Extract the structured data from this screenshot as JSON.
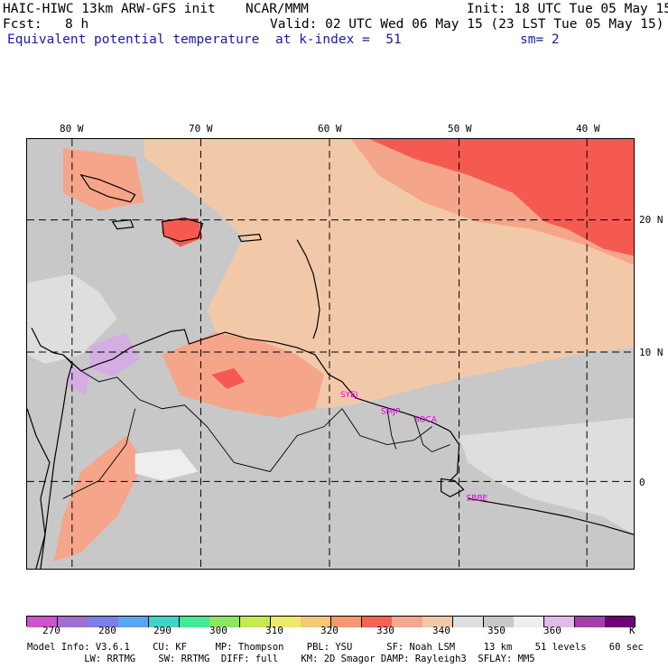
{
  "header": {
    "model_title": "HAIC-HIWC 13km ARW-GFS init",
    "org": "NCAR/MMM",
    "init": "Init: 18 UTC Tue 05 May 15",
    "forecast_label": "Fcst:",
    "forecast_hours": "8 h",
    "valid": "Valid: 02 UTC Wed 06 May 15 (23 LST Tue 05 May 15)",
    "field_name": "Equivalent potential temperature",
    "level": "at k-index =  51",
    "smoothing": "sm= 2"
  },
  "map": {
    "lon_labels": [
      "80 W",
      "70 W",
      "60 W",
      "50 W",
      "40 W"
    ],
    "lat_labels": [
      "20 N",
      "10 N",
      "0"
    ],
    "stations": [
      "SYEJ",
      "SMJP",
      "SOCA",
      "SBBE"
    ],
    "colors": {
      "background_gray": "#c8c8c8",
      "light_gray": "#dedede",
      "peach": "#f2c9a8",
      "salmon": "#f5a58a",
      "red": "#f55a50",
      "lavender": "#d4aee2",
      "station_magenta": "#e000e0"
    }
  },
  "colorbar": {
    "labels": [
      "270",
      "280",
      "290",
      "300",
      "310",
      "320",
      "330",
      "340",
      "350",
      "360",
      "K"
    ],
    "colors": [
      "#cc55cc",
      "#a070d0",
      "#7e7ee6",
      "#5aa6ec",
      "#42d2c8",
      "#44e896",
      "#8ae860",
      "#c6e850",
      "#ece86a",
      "#f4c878",
      "#f49a70",
      "#f46454",
      "#f4a890",
      "#f2c9a8",
      "#dedede",
      "#c8c8c8",
      "#eeeeee",
      "#e0bae8",
      "#a040a8",
      "#700078"
    ]
  },
  "footer": {
    "line1": "Model Info: V3.6.1    CU: KF     MP: Thompson    PBL: YSU      SF: Noah LSM     13 km    51 levels    60 sec",
    "line2": "          LW: RRTMG    SW: RRTMG  DIFF: full    KM: 2D Smagor DAMP: Rayleigh3  SFLAY: MM5"
  }
}
